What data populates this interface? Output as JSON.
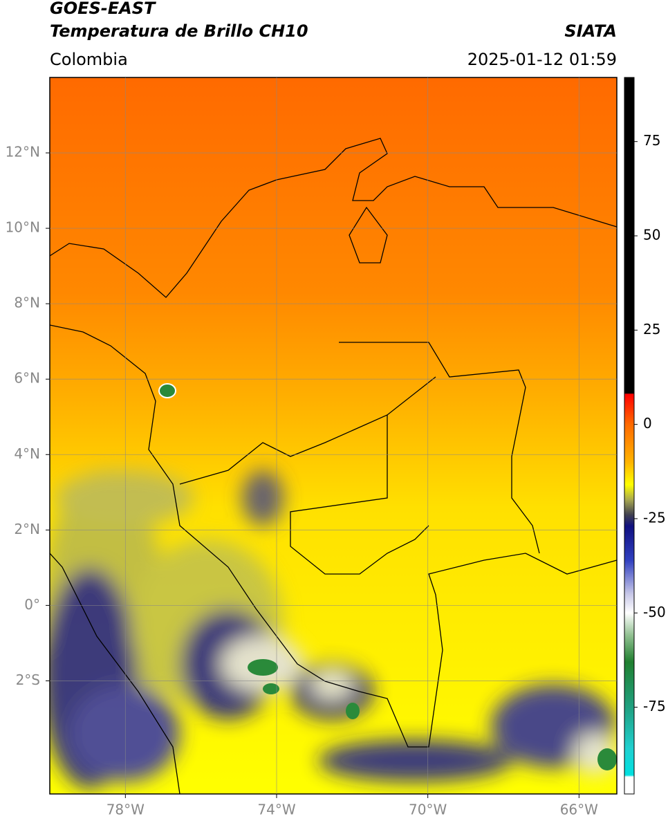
{
  "chart_data": {
    "type": "map",
    "title": "GOES-EAST",
    "subtitle": "Temperatura de Brillo CH10",
    "source_label": "SIATA",
    "region": "Colombia",
    "timestamp": "2025-01-12 01:59",
    "xlim": [
      -80,
      -65
    ],
    "ylim": [
      -5,
      14
    ],
    "xticks": [
      {
        "value": -78,
        "label": "78°W"
      },
      {
        "value": -74,
        "label": "74°W"
      },
      {
        "value": -70,
        "label": "70°W"
      },
      {
        "value": -66,
        "label": "66°W"
      }
    ],
    "yticks": [
      {
        "value": 12,
        "label": "12°N"
      },
      {
        "value": 10,
        "label": "10°N"
      },
      {
        "value": 8,
        "label": "8°N"
      },
      {
        "value": 6,
        "label": "6°N"
      },
      {
        "value": 4,
        "label": "4°N"
      },
      {
        "value": 2,
        "label": "2°N"
      },
      {
        "value": 0,
        "label": "0°"
      },
      {
        "value": -2,
        "label": "2°S"
      }
    ],
    "grid": true,
    "colorbar": {
      "lim": [
        -98,
        92
      ],
      "ticks": [
        75,
        50,
        25,
        0,
        -25,
        -50,
        -75
      ],
      "colormap": [
        {
          "value": 92,
          "color": "#000000"
        },
        {
          "value": 8.3,
          "color": "#000000"
        },
        {
          "value": 8,
          "color": "#ff0000"
        },
        {
          "value": 0,
          "color": "#ff6a00"
        },
        {
          "value": -10,
          "color": "#ffb400"
        },
        {
          "value": -16,
          "color": "#ffff00"
        },
        {
          "value": -20,
          "color": "#a8a850"
        },
        {
          "value": -24,
          "color": "#404050"
        },
        {
          "value": -27,
          "color": "#101080"
        },
        {
          "value": -36,
          "color": "#3040c0"
        },
        {
          "value": -45,
          "color": "#c8c8e8"
        },
        {
          "value": -50,
          "color": "#ffffff"
        },
        {
          "value": -56,
          "color": "#90c090"
        },
        {
          "value": -63,
          "color": "#208030"
        },
        {
          "value": -75,
          "color": "#20a080"
        },
        {
          "value": -86,
          "color": "#20d0d0"
        },
        {
          "value": -93,
          "color": "#00e0e0"
        },
        {
          "value": -93.5,
          "color": "#ffffff"
        },
        {
          "value": -98,
          "color": "#ffffff"
        }
      ]
    }
  }
}
